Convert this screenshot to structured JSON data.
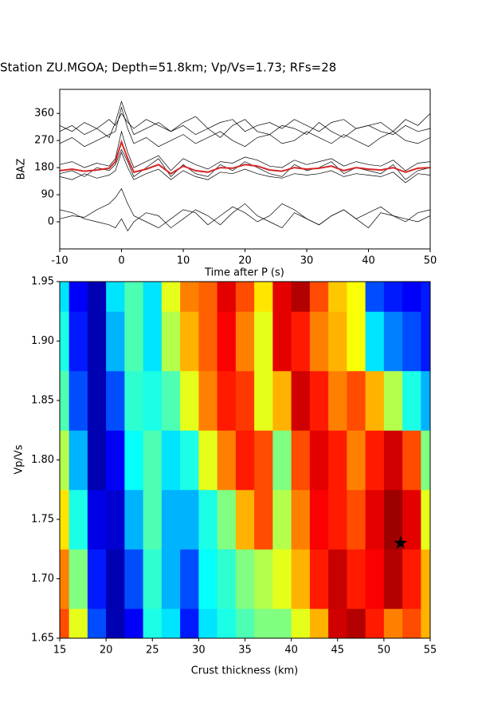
{
  "chart_data": [
    {
      "type": "line",
      "title": "Station ZU.MGOA; Depth=51.8km; Vp/Vs=1.73; RFs=28",
      "ylabel": "BAZ",
      "xlabel": "Time after P (s)",
      "xlim": [
        -10,
        50
      ],
      "xticks": [
        -10,
        0,
        10,
        20,
        30,
        40,
        50
      ],
      "ylim": [
        -90,
        440
      ],
      "yticks": [
        0,
        90,
        180,
        270,
        360
      ],
      "x": [
        -10,
        -8,
        -6,
        -4,
        -2,
        -1,
        0,
        1,
        2,
        4,
        6,
        8,
        10,
        12,
        14,
        16,
        18,
        20,
        22,
        24,
        26,
        28,
        30,
        32,
        34,
        36,
        38,
        40,
        42,
        44,
        46,
        48,
        50
      ],
      "series": [
        {
          "color": "#000000",
          "values": [
            10,
            20,
            15,
            40,
            60,
            80,
            110,
            60,
            20,
            0,
            -20,
            10,
            40,
            30,
            -10,
            20,
            50,
            30,
            0,
            20,
            60,
            40,
            10,
            -10,
            20,
            40,
            10,
            30,
            50,
            20,
            0,
            30,
            40
          ]
        },
        {
          "color": "#000000",
          "values": [
            40,
            30,
            10,
            0,
            -10,
            -20,
            10,
            -30,
            0,
            30,
            20,
            -20,
            10,
            40,
            20,
            -10,
            30,
            60,
            20,
            0,
            -20,
            30,
            10,
            -10,
            20,
            40,
            10,
            -20,
            30,
            20,
            10,
            0,
            20
          ]
        },
        {
          "color": "#000000",
          "values": [
            160,
            170,
            150,
            180,
            170,
            190,
            240,
            200,
            150,
            180,
            210,
            150,
            190,
            160,
            150,
            190,
            170,
            200,
            180,
            160,
            150,
            190,
            170,
            180,
            200,
            160,
            180,
            170,
            160,
            190,
            140,
            170,
            180
          ]
        },
        {
          "color": "#000000",
          "values": [
            190,
            200,
            180,
            195,
            185,
            210,
            300,
            230,
            180,
            200,
            220,
            170,
            210,
            190,
            175,
            200,
            195,
            215,
            205,
            185,
            180,
            205,
            190,
            200,
            210,
            185,
            200,
            190,
            185,
            205,
            170,
            195,
            200
          ]
        },
        {
          "color": "#000000",
          "values": [
            150,
            140,
            160,
            145,
            155,
            170,
            230,
            180,
            140,
            160,
            175,
            140,
            170,
            150,
            140,
            165,
            160,
            175,
            160,
            150,
            145,
            160,
            155,
            160,
            170,
            150,
            160,
            155,
            150,
            165,
            130,
            160,
            155
          ]
        },
        {
          "color": "#000000",
          "values": [
            260,
            280,
            250,
            270,
            290,
            300,
            380,
            310,
            260,
            280,
            250,
            270,
            290,
            260,
            280,
            300,
            270,
            250,
            280,
            290,
            260,
            270,
            300,
            280,
            260,
            290,
            270,
            250,
            280,
            300,
            270,
            260,
            280
          ]
        },
        {
          "color": "#000000",
          "values": [
            300,
            320,
            290,
            310,
            280,
            330,
            400,
            340,
            290,
            310,
            330,
            300,
            320,
            290,
            310,
            280,
            320,
            340,
            300,
            290,
            320,
            310,
            290,
            330,
            300,
            280,
            310,
            320,
            300,
            290,
            320,
            300,
            310
          ]
        },
        {
          "color": "#000000",
          "values": [
            320,
            300,
            330,
            310,
            340,
            320,
            360,
            330,
            310,
            340,
            320,
            300,
            330,
            350,
            310,
            330,
            340,
            300,
            320,
            330,
            310,
            340,
            320,
            300,
            330,
            340,
            310,
            320,
            330,
            300,
            340,
            320,
            360
          ]
        },
        {
          "color": "#d62728",
          "values": [
            170,
            175,
            168,
            172,
            178,
            200,
            265,
            210,
            165,
            175,
            190,
            160,
            185,
            170,
            165,
            180,
            178,
            190,
            185,
            172,
            168,
            180,
            175,
            178,
            185,
            170,
            180,
            175,
            172,
            180,
            165,
            178,
            180
          ]
        }
      ]
    },
    {
      "type": "heatmap",
      "xlabel": "Crust thickness (km)",
      "ylabel": "Vp/Vs",
      "xlim": [
        15,
        55
      ],
      "xticks": [
        15,
        20,
        25,
        30,
        35,
        40,
        45,
        50,
        55
      ],
      "ylim": [
        1.65,
        1.95
      ],
      "yticks": [
        1.65,
        {
          "value": 1.7,
          "label": "1.70"
        },
        1.75,
        {
          "value": 1.8,
          "label": "1.80"
        },
        1.85,
        {
          "value": 1.9,
          "label": "1.90"
        },
        1.95
      ],
      "colormap": "jet",
      "x": [
        15,
        17,
        19,
        21,
        23,
        25,
        27,
        29,
        31,
        33,
        35,
        37,
        39,
        41,
        43,
        45,
        47,
        49,
        51,
        53,
        55
      ],
      "y": [
        1.65,
        1.7,
        1.75,
        1.8,
        1.85,
        1.9,
        1.95
      ],
      "z": [
        [
          0.8,
          0.6,
          0.2,
          0.05,
          0.12,
          0.4,
          0.35,
          0.15,
          0.35,
          0.4,
          0.45,
          0.5,
          0.5,
          0.6,
          0.7,
          0.92,
          0.95,
          0.85,
          0.75,
          0.8,
          0.7
        ],
        [
          0.75,
          0.5,
          0.15,
          0.05,
          0.2,
          0.42,
          0.3,
          0.2,
          0.38,
          0.42,
          0.5,
          0.55,
          0.6,
          0.7,
          0.85,
          0.93,
          0.85,
          0.88,
          0.95,
          0.85,
          0.7
        ],
        [
          0.65,
          0.4,
          0.1,
          0.08,
          0.3,
          0.45,
          0.3,
          0.3,
          0.4,
          0.5,
          0.7,
          0.8,
          0.55,
          0.75,
          0.88,
          0.85,
          0.8,
          0.9,
          0.97,
          0.9,
          0.6
        ],
        [
          0.55,
          0.3,
          0.05,
          0.12,
          0.38,
          0.45,
          0.35,
          0.4,
          0.6,
          0.75,
          0.85,
          0.8,
          0.5,
          0.8,
          0.9,
          0.85,
          0.75,
          0.85,
          0.92,
          0.8,
          0.5
        ],
        [
          0.45,
          0.2,
          0.05,
          0.2,
          0.42,
          0.4,
          0.45,
          0.6,
          0.75,
          0.85,
          0.82,
          0.6,
          0.7,
          0.92,
          0.85,
          0.75,
          0.8,
          0.7,
          0.55,
          0.4,
          0.3
        ],
        [
          0.4,
          0.15,
          0.05,
          0.3,
          0.45,
          0.35,
          0.55,
          0.7,
          0.78,
          0.88,
          0.75,
          0.6,
          0.9,
          0.85,
          0.75,
          0.7,
          0.62,
          0.35,
          0.25,
          0.2,
          0.15
        ],
        [
          0.35,
          0.12,
          0.05,
          0.35,
          0.45,
          0.35,
          0.6,
          0.75,
          0.78,
          0.9,
          0.8,
          0.65,
          0.9,
          0.95,
          0.8,
          0.68,
          0.62,
          0.2,
          0.15,
          0.12,
          0.15
        ]
      ],
      "marker": {
        "x": 51.8,
        "y": 1.73,
        "color": "#000000"
      }
    }
  ]
}
